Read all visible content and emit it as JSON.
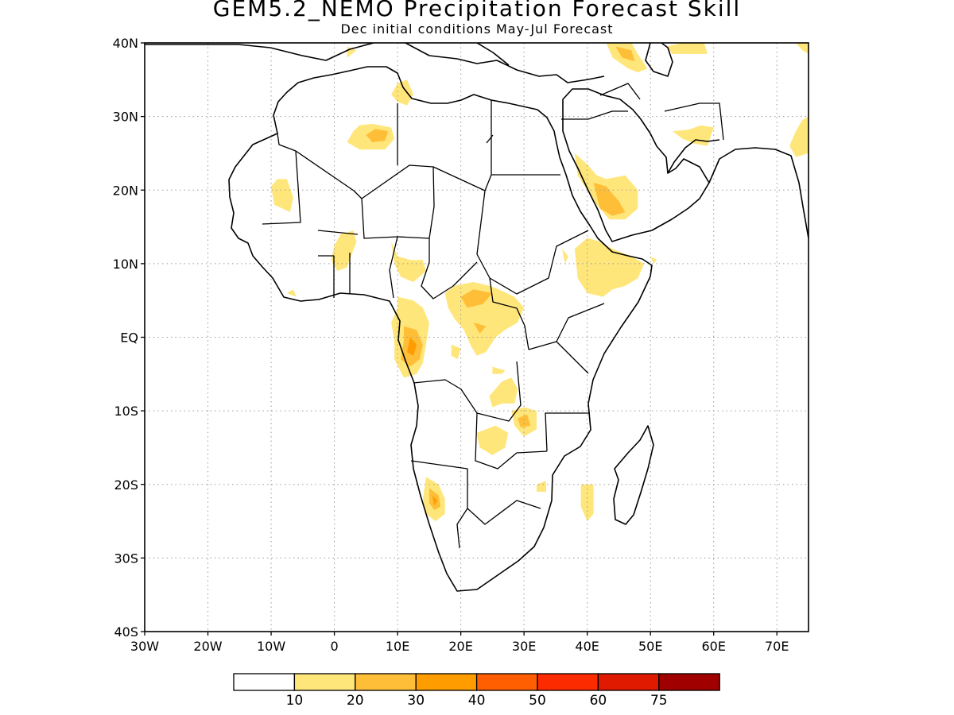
{
  "title": "GEM5.2_NEMO Precipitation Forecast Skill",
  "subtitle": "Dec initial conditions  May-Jul Forecast",
  "map": {
    "lon_range": [
      -30,
      75
    ],
    "lat_range": [
      -40,
      40
    ],
    "lon_ticks": [
      {
        "v": -30,
        "label": "30W"
      },
      {
        "v": -20,
        "label": "20W"
      },
      {
        "v": -10,
        "label": "10W"
      },
      {
        "v": 0,
        "label": "0"
      },
      {
        "v": 10,
        "label": "10E"
      },
      {
        "v": 20,
        "label": "20E"
      },
      {
        "v": 30,
        "label": "30E"
      },
      {
        "v": 40,
        "label": "40E"
      },
      {
        "v": 50,
        "label": "50E"
      },
      {
        "v": 60,
        "label": "60E"
      },
      {
        "v": 70,
        "label": "70E"
      }
    ],
    "lat_ticks": [
      {
        "v": 40,
        "label": "40N"
      },
      {
        "v": 30,
        "label": "30N"
      },
      {
        "v": 20,
        "label": "20N"
      },
      {
        "v": 10,
        "label": "10N"
      },
      {
        "v": 0,
        "label": "EQ"
      },
      {
        "v": -10,
        "label": "10S"
      },
      {
        "v": -20,
        "label": "20S"
      },
      {
        "v": -30,
        "label": "30S"
      },
      {
        "v": -40,
        "label": "40S"
      }
    ],
    "grid": true,
    "skill_regions": [
      {
        "level": 1,
        "pts": [
          [
            2,
            38
          ],
          [
            3.5,
            39
          ],
          [
            2,
            39.5
          ]
        ]
      },
      {
        "level": 1,
        "pts": [
          [
            -3,
            37
          ],
          [
            -5,
            36
          ],
          [
            -4,
            36.5
          ]
        ]
      },
      {
        "level": 1,
        "pts": [
          [
            10,
            34.5
          ],
          [
            9,
            33
          ],
          [
            10,
            32
          ],
          [
            11.5,
            31.5
          ],
          [
            12.5,
            33
          ],
          [
            11.5,
            35
          ]
        ]
      },
      {
        "level": 1,
        "pts": [
          [
            3,
            28
          ],
          [
            2,
            26.5
          ],
          [
            4,
            25.5
          ],
          [
            8,
            25.5
          ],
          [
            9.5,
            27
          ],
          [
            9,
            28.5
          ],
          [
            6,
            29
          ],
          [
            4,
            28.8
          ]
        ]
      },
      {
        "level": 2,
        "pts": [
          [
            5,
            27.5
          ],
          [
            6,
            26.5
          ],
          [
            8,
            26.7
          ],
          [
            8.5,
            28
          ],
          [
            6.5,
            28.3
          ]
        ]
      },
      {
        "level": 1,
        "pts": [
          [
            -10,
            20.5
          ],
          [
            -9.5,
            18
          ],
          [
            -7,
            17
          ],
          [
            -6.5,
            19
          ],
          [
            -7.5,
            21.5
          ],
          [
            -9,
            21.5
          ]
        ]
      },
      {
        "level": 1,
        "pts": [
          [
            0,
            12.5
          ],
          [
            1,
            14
          ],
          [
            3,
            14.5
          ],
          [
            3.5,
            13
          ],
          [
            2,
            9.5
          ],
          [
            0.5,
            9
          ],
          [
            -0.5,
            10.5
          ]
        ]
      },
      {
        "level": 1,
        "pts": [
          [
            9,
            13
          ],
          [
            10,
            11
          ],
          [
            12,
            10.5
          ],
          [
            14,
            10.5
          ],
          [
            14.5,
            9
          ],
          [
            12.5,
            7.5
          ],
          [
            10.5,
            8.2
          ],
          [
            9.5,
            10
          ]
        ]
      },
      {
        "level": 1,
        "pts": [
          [
            -7.5,
            6
          ],
          [
            -6,
            5.5
          ],
          [
            -6.5,
            6.5
          ]
        ]
      },
      {
        "level": 1,
        "pts": [
          [
            10,
            5.5
          ],
          [
            12.5,
            5
          ],
          [
            14,
            4
          ],
          [
            15,
            2
          ],
          [
            14.5,
            -1
          ],
          [
            14,
            -3.5
          ],
          [
            13,
            -5
          ],
          [
            11,
            -5.5
          ],
          [
            9.5,
            -3
          ],
          [
            9.5,
            -0.5
          ],
          [
            9,
            2
          ],
          [
            10,
            4
          ]
        ]
      },
      {
        "level": 2,
        "pts": [
          [
            11,
            1.5
          ],
          [
            13,
            1
          ],
          [
            14,
            -1
          ],
          [
            13.5,
            -3
          ],
          [
            12,
            -4
          ],
          [
            10.5,
            -3
          ],
          [
            11,
            -0.5
          ]
        ]
      },
      {
        "level": 3,
        "pts": [
          [
            12,
            0
          ],
          [
            13,
            -1
          ],
          [
            12.5,
            -2.5
          ],
          [
            11.5,
            -2
          ]
        ]
      },
      {
        "level": 1,
        "pts": [
          [
            17.5,
            6
          ],
          [
            19,
            7
          ],
          [
            22,
            7.5
          ],
          [
            24.5,
            7
          ],
          [
            26,
            6.5
          ],
          [
            28.5,
            5.5
          ],
          [
            30,
            4
          ],
          [
            29,
            2
          ],
          [
            27,
            1
          ],
          [
            25.5,
            0
          ],
          [
            24,
            -2
          ],
          [
            22.5,
            -2.5
          ],
          [
            21.5,
            -1
          ],
          [
            20.5,
            1
          ],
          [
            19,
            2.5
          ],
          [
            18,
            4
          ]
        ]
      },
      {
        "level": 2,
        "pts": [
          [
            20,
            5.5
          ],
          [
            22,
            6.5
          ],
          [
            25,
            6
          ],
          [
            23.5,
            4.5
          ],
          [
            21,
            4
          ]
        ]
      },
      {
        "level": 2,
        "pts": [
          [
            22,
            2
          ],
          [
            24,
            1.5
          ],
          [
            23,
            0.5
          ]
        ]
      },
      {
        "level": 1,
        "pts": [
          [
            18.5,
            -1
          ],
          [
            20,
            -1.5
          ],
          [
            19.5,
            -3
          ],
          [
            18.5,
            -2.5
          ]
        ]
      },
      {
        "level": 1,
        "pts": [
          [
            25,
            -4
          ],
          [
            27,
            -4.5
          ],
          [
            26.5,
            -5
          ],
          [
            25,
            -5
          ]
        ]
      },
      {
        "level": 1,
        "pts": [
          [
            24.5,
            -8
          ],
          [
            26.5,
            -6
          ],
          [
            28,
            -5.5
          ],
          [
            29,
            -7
          ],
          [
            28.5,
            -9
          ],
          [
            26.5,
            -9
          ],
          [
            25,
            -9.5
          ]
        ]
      },
      {
        "level": 1,
        "pts": [
          [
            28,
            -10
          ],
          [
            30,
            -9.5
          ],
          [
            32,
            -10
          ],
          [
            32,
            -12.5
          ],
          [
            30,
            -13.5
          ],
          [
            28.5,
            -12
          ]
        ]
      },
      {
        "level": 2,
        "pts": [
          [
            29,
            -11
          ],
          [
            30.5,
            -10.5
          ],
          [
            31,
            -12
          ],
          [
            29.5,
            -12.3
          ]
        ]
      },
      {
        "level": 1,
        "pts": [
          [
            22.5,
            -13
          ],
          [
            25.5,
            -12
          ],
          [
            27.5,
            -13
          ],
          [
            27,
            -15
          ],
          [
            25,
            -16
          ],
          [
            23,
            -15
          ]
        ]
      },
      {
        "level": 1,
        "pts": [
          [
            32,
            -20
          ],
          [
            33.5,
            -19.5
          ],
          [
            33.5,
            -21
          ],
          [
            32,
            -21
          ]
        ]
      },
      {
        "level": 1,
        "pts": [
          [
            14.5,
            -19
          ],
          [
            16.5,
            -20
          ],
          [
            17.5,
            -22
          ],
          [
            17.5,
            -24
          ],
          [
            16,
            -25
          ],
          [
            14.5,
            -24
          ],
          [
            14,
            -22
          ]
        ]
      },
      {
        "level": 2,
        "pts": [
          [
            15,
            -20.5
          ],
          [
            16.5,
            -21.5
          ],
          [
            16.8,
            -23
          ],
          [
            15.8,
            -23.5
          ],
          [
            15,
            -22.5
          ]
        ]
      },
      {
        "level": 3,
        "pts": [
          [
            15.5,
            -21.5
          ],
          [
            16.3,
            -22.2
          ],
          [
            15.8,
            -22.8
          ]
        ]
      },
      {
        "level": 1,
        "pts": [
          [
            39,
            -20
          ],
          [
            41,
            -20
          ],
          [
            41,
            -24
          ],
          [
            40,
            -25
          ],
          [
            39,
            -23
          ]
        ]
      },
      {
        "level": 1,
        "pts": [
          [
            38,
            25
          ],
          [
            40,
            23.5
          ],
          [
            41.5,
            22
          ],
          [
            43,
            21.5
          ],
          [
            46,
            22
          ],
          [
            48,
            20
          ],
          [
            48,
            17.5
          ],
          [
            46,
            16
          ],
          [
            43.5,
            16
          ],
          [
            41.5,
            18
          ],
          [
            40,
            20
          ],
          [
            38.5,
            22
          ]
        ]
      },
      {
        "level": 2,
        "pts": [
          [
            41,
            21
          ],
          [
            43,
            20.5
          ],
          [
            45,
            18.5
          ],
          [
            46,
            17
          ],
          [
            44,
            16.5
          ],
          [
            42,
            17.5
          ]
        ]
      },
      {
        "level": 1,
        "pts": [
          [
            38,
            12
          ],
          [
            40,
            13.5
          ],
          [
            42,
            13
          ],
          [
            44,
            12
          ],
          [
            47,
            11
          ],
          [
            49,
            10
          ],
          [
            48,
            8
          ],
          [
            46,
            7
          ],
          [
            44,
            6.5
          ],
          [
            42.5,
            5.5
          ],
          [
            40,
            6
          ],
          [
            38.5,
            8
          ]
        ]
      },
      {
        "level": 1,
        "pts": [
          [
            36,
            12
          ],
          [
            37,
            11
          ],
          [
            36.5,
            10
          ]
        ]
      },
      {
        "level": 1,
        "pts": [
          [
            50,
            11
          ],
          [
            51,
            10.5
          ],
          [
            50.5,
            10
          ]
        ]
      },
      {
        "level": 1,
        "pts": [
          [
            43,
            40
          ],
          [
            44,
            38
          ],
          [
            46.5,
            36.5
          ],
          [
            48,
            36
          ],
          [
            49.5,
            36.5
          ],
          [
            48,
            38.5
          ],
          [
            47,
            40
          ]
        ]
      },
      {
        "level": 2,
        "pts": [
          [
            44.5,
            39.5
          ],
          [
            45.5,
            38
          ],
          [
            47.5,
            37.5
          ],
          [
            47,
            39
          ]
        ]
      },
      {
        "level": 1,
        "pts": [
          [
            52.5,
            39.5
          ],
          [
            55,
            40
          ],
          [
            58.5,
            40
          ],
          [
            59,
            38.5
          ],
          [
            56,
            38.5
          ],
          [
            53.5,
            38.5
          ]
        ]
      },
      {
        "level": 1,
        "pts": [
          [
            73,
            40
          ],
          [
            75,
            40
          ],
          [
            75,
            38.5
          ],
          [
            74,
            39
          ]
        ]
      },
      {
        "level": 1,
        "pts": [
          [
            53.5,
            28
          ],
          [
            56,
            28.2
          ],
          [
            58,
            28.8
          ],
          [
            60,
            28.5
          ],
          [
            59,
            26
          ],
          [
            57,
            26.3
          ],
          [
            55,
            27
          ]
        ]
      },
      {
        "level": 1,
        "pts": [
          [
            72,
            26
          ],
          [
            73,
            28
          ],
          [
            74,
            29.5
          ],
          [
            75,
            30
          ],
          [
            75,
            25
          ],
          [
            73,
            24.5
          ]
        ]
      }
    ]
  },
  "colorbar": {
    "labels": [
      "10",
      "20",
      "30",
      "40",
      "50",
      "60",
      "75"
    ],
    "colors": [
      "#ffffff",
      "#ffe67a",
      "#ffbe38",
      "#ff9c00",
      "#ff5f00",
      "#fd2b00",
      "#e01a00",
      "#a00000"
    ]
  }
}
